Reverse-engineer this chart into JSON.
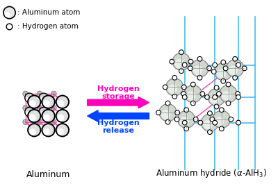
{
  "legend_al_label": ": Aluminum atom",
  "legend_h_label": ": Hydrogen atom",
  "arrow_storage_text": "Hydrogen\nstorage",
  "arrow_release_text": "Hydrogen\nrelease",
  "label_al": "Aluminum",
  "label_alh3": "Aluminum hydride (α-AlH$_3$)",
  "arrow_storage_color": "#FF00BB",
  "arrow_release_color": "#0044FF",
  "cyan": "#44BBEE",
  "pink": "#EE44AA",
  "gray_edge": "#888888",
  "gray_fill": "#C8D8C8",
  "oct_fill": "#D0DDD0",
  "bg_color": "white"
}
